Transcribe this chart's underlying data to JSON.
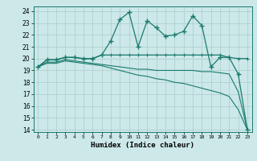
{
  "title": "",
  "xlabel": "Humidex (Indice chaleur)",
  "background_color": "#cce8e8",
  "line_color": "#1a7a6e",
  "grid_color": "#aacccc",
  "xlim": [
    -0.5,
    23.5
  ],
  "ylim": [
    13.8,
    24.4
  ],
  "yticks": [
    14,
    15,
    16,
    17,
    18,
    19,
    20,
    21,
    22,
    23,
    24
  ],
  "xticks": [
    0,
    1,
    2,
    3,
    4,
    5,
    6,
    7,
    8,
    9,
    10,
    11,
    12,
    13,
    14,
    15,
    16,
    17,
    18,
    19,
    20,
    21,
    22,
    23
  ],
  "series1_x": [
    0,
    1,
    2,
    3,
    4,
    5,
    6,
    7,
    8,
    9,
    10,
    11,
    12,
    13,
    14,
    15,
    16,
    17,
    18,
    19,
    20,
    21,
    22,
    23
  ],
  "series1_y": [
    19.3,
    19.9,
    19.9,
    20.1,
    20.1,
    20.0,
    20.0,
    20.3,
    21.5,
    23.3,
    23.9,
    21.0,
    23.2,
    22.6,
    21.9,
    22.0,
    22.3,
    23.6,
    22.8,
    19.3,
    20.1,
    20.1,
    18.7,
    14.0
  ],
  "series2_x": [
    0,
    1,
    2,
    3,
    4,
    5,
    6,
    7,
    8,
    9,
    10,
    11,
    12,
    13,
    14,
    15,
    16,
    17,
    18,
    19,
    20,
    21,
    22,
    23
  ],
  "series2_y": [
    19.3,
    19.9,
    19.9,
    20.1,
    20.1,
    20.0,
    20.0,
    20.3,
    20.3,
    20.3,
    20.3,
    20.3,
    20.3,
    20.3,
    20.3,
    20.3,
    20.3,
    20.3,
    20.3,
    20.3,
    20.3,
    20.1,
    20.0,
    20.0
  ],
  "series3_x": [
    0,
    1,
    2,
    3,
    4,
    5,
    6,
    7,
    8,
    9,
    10,
    11,
    12,
    13,
    14,
    15,
    16,
    17,
    18,
    19,
    20,
    21,
    22,
    23
  ],
  "series3_y": [
    19.3,
    19.7,
    19.7,
    19.9,
    19.8,
    19.7,
    19.6,
    19.5,
    19.4,
    19.3,
    19.2,
    19.1,
    19.1,
    19.0,
    19.0,
    19.0,
    19.0,
    19.0,
    18.9,
    18.9,
    18.8,
    18.7,
    17.2,
    14.0
  ],
  "series4_x": [
    0,
    1,
    2,
    3,
    4,
    5,
    6,
    7,
    8,
    9,
    10,
    11,
    12,
    13,
    14,
    15,
    16,
    17,
    18,
    19,
    20,
    21,
    22,
    23
  ],
  "series4_y": [
    19.3,
    19.6,
    19.6,
    19.8,
    19.7,
    19.6,
    19.5,
    19.4,
    19.2,
    19.0,
    18.8,
    18.6,
    18.5,
    18.3,
    18.2,
    18.0,
    17.9,
    17.7,
    17.5,
    17.3,
    17.1,
    16.8,
    15.7,
    14.0
  ]
}
